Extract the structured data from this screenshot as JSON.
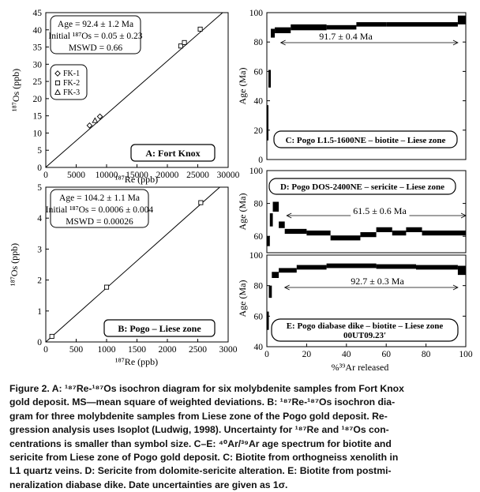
{
  "chart_data": [
    {
      "id": "A",
      "type": "scatter",
      "xlabel": "¹⁸⁷Re (ppb)",
      "ylabel": "¹⁸⁷Os (ppb)",
      "xlim": [
        0,
        30000
      ],
      "ylim": [
        0,
        45
      ],
      "xticks": [
        0,
        5000,
        10000,
        15000,
        20000,
        25000,
        30000
      ],
      "yticks": [
        0,
        5,
        10,
        15,
        20,
        25,
        30,
        35,
        40,
        45
      ],
      "legend": [
        {
          "symbol": "diamond",
          "name": "FK-1"
        },
        {
          "symbol": "square",
          "name": "FK-2"
        },
        {
          "symbol": "triangle",
          "name": "FK-3"
        }
      ],
      "stats_lines": [
        "Age = 92.4 ± 1.2 Ma",
        "Initial ¹⁸⁷Os = 0.05 ± 0.23",
        "MSWD = 0.66"
      ],
      "panel_label": "A:  Fort Knox",
      "regression": {
        "x": [
          0,
          30000
        ],
        "y": [
          0.05,
          46.4
        ]
      },
      "points": [
        {
          "x": 7200,
          "y": 12.2,
          "symbol": "diamond"
        },
        {
          "x": 8100,
          "y": 13.6,
          "symbol": "triangle"
        },
        {
          "x": 8900,
          "y": 14.8,
          "symbol": "diamond"
        },
        {
          "x": 22200,
          "y": 35.3,
          "symbol": "square"
        },
        {
          "x": 22800,
          "y": 36.3,
          "symbol": "square"
        },
        {
          "x": 25400,
          "y": 40.2,
          "symbol": "square"
        }
      ]
    },
    {
      "id": "B",
      "type": "scatter",
      "xlabel": "¹⁸⁷Re (ppb)",
      "ylabel": "¹⁸⁷Os (ppb)",
      "xlim": [
        0,
        3000
      ],
      "ylim": [
        0,
        5
      ],
      "xticks": [
        0,
        500,
        1000,
        1500,
        2000,
        2500,
        3000
      ],
      "yticks": [
        0,
        1,
        2,
        3,
        4,
        5
      ],
      "stats_lines": [
        "Age = 104.2 ± 1.1 Ma",
        "Initial ¹⁸⁷Os = 0.0006 ± 0.004",
        "MSWD = 0.00026"
      ],
      "panel_label": "B:  Pogo – Liese zone",
      "regression": {
        "x": [
          0,
          3000
        ],
        "y": [
          0.0006,
          5.24
        ]
      },
      "points": [
        {
          "x": 100,
          "y": 0.18,
          "symbol": "square"
        },
        {
          "x": 1000,
          "y": 1.77,
          "symbol": "square"
        },
        {
          "x": 2550,
          "y": 4.5,
          "symbol": "square"
        }
      ]
    },
    {
      "id": "C",
      "type": "line",
      "ylabel": "Age (Ma)",
      "xlim": [
        0,
        100
      ],
      "ylim": [
        0,
        100
      ],
      "yticks": [
        0,
        20,
        40,
        60,
        80,
        100
      ],
      "plateau_label": "91.7 ± 0.4 Ma",
      "plateau_range": [
        7,
        96
      ],
      "panel_label": "C: Pogo L1.5-1600NE – biotite – Liese zone",
      "steps": [
        {
          "x0": 0,
          "x1": 0.8,
          "y": 25,
          "err": 12
        },
        {
          "x0": 0.8,
          "x1": 2,
          "y": 55,
          "err": 6
        },
        {
          "x0": 2,
          "x1": 4,
          "y": 86,
          "err": 3
        },
        {
          "x0": 4,
          "x1": 12,
          "y": 88,
          "err": 2
        },
        {
          "x0": 12,
          "x1": 30,
          "y": 90,
          "err": 2
        },
        {
          "x0": 30,
          "x1": 45,
          "y": 90,
          "err": 1.5
        },
        {
          "x0": 45,
          "x1": 60,
          "y": 92,
          "err": 1.5
        },
        {
          "x0": 60,
          "x1": 96,
          "y": 92,
          "err": 1.5
        },
        {
          "x0": 96,
          "x1": 100,
          "y": 95,
          "err": 3
        }
      ]
    },
    {
      "id": "D",
      "type": "line",
      "ylabel": "Age (Ma)",
      "xlim": [
        0,
        100
      ],
      "ylim": [
        50,
        100
      ],
      "yticks": [
        60,
        80,
        100
      ],
      "plateau_label": "61.5 ± 0.6 Ma",
      "plateau_range": [
        10,
        100
      ],
      "panel_label": "D: Pogo DOS-2400NE – sericite – Liese zone",
      "steps": [
        {
          "x0": 0,
          "x1": 1.5,
          "y": 57,
          "err": 3
        },
        {
          "x0": 1.5,
          "x1": 3,
          "y": 70,
          "err": 4
        },
        {
          "x0": 3,
          "x1": 6,
          "y": 78,
          "err": 3
        },
        {
          "x0": 6,
          "x1": 9,
          "y": 67,
          "err": 2
        },
        {
          "x0": 9,
          "x1": 20,
          "y": 63,
          "err": 1.5
        },
        {
          "x0": 20,
          "x1": 32,
          "y": 62,
          "err": 1.5
        },
        {
          "x0": 32,
          "x1": 47,
          "y": 59,
          "err": 1.5
        },
        {
          "x0": 47,
          "x1": 55,
          "y": 61,
          "err": 1.5
        },
        {
          "x0": 55,
          "x1": 63,
          "y": 64,
          "err": 1.5
        },
        {
          "x0": 63,
          "x1": 70,
          "y": 62,
          "err": 1.5
        },
        {
          "x0": 70,
          "x1": 78,
          "y": 64,
          "err": 1.5
        },
        {
          "x0": 78,
          "x1": 100,
          "y": 62,
          "err": 1.5
        }
      ]
    },
    {
      "id": "E",
      "type": "line",
      "xlabel": "%³⁹Ar released",
      "ylabel": "Age (Ma)",
      "xlim": [
        0,
        100
      ],
      "ylim": [
        40,
        100
      ],
      "xticks": [
        0,
        20,
        40,
        60,
        80,
        100
      ],
      "yticks": [
        40,
        60,
        80,
        100
      ],
      "plateau_label": "92.7 ± 0.3 Ma",
      "plateau_range": [
        9,
        96
      ],
      "panel_label": "E: Pogo diabase dike – biotite – Liese zone",
      "panel_sublabel": "00UT09.23′",
      "steps": [
        {
          "x0": 0,
          "x1": 1,
          "y": 57,
          "err": 6
        },
        {
          "x0": 1,
          "x1": 2.5,
          "y": 76,
          "err": 4
        },
        {
          "x0": 2.5,
          "x1": 6,
          "y": 87,
          "err": 2
        },
        {
          "x0": 6,
          "x1": 15,
          "y": 90,
          "err": 1.5
        },
        {
          "x0": 15,
          "x1": 30,
          "y": 92,
          "err": 1.5
        },
        {
          "x0": 30,
          "x1": 55,
          "y": 93,
          "err": 1.5
        },
        {
          "x0": 55,
          "x1": 75,
          "y": 92.5,
          "err": 1.5
        },
        {
          "x0": 75,
          "x1": 96,
          "y": 92,
          "err": 1.5
        },
        {
          "x0": 96,
          "x1": 100,
          "y": 90,
          "err": 3
        }
      ]
    }
  ],
  "caption": [
    "Figure 2. A: ¹⁸⁷Re-¹⁸⁷Os isochron diagram for six molybdenite samples from Fort Knox",
    "gold deposit. MS—mean square of weighted deviations. B: ¹⁸⁷Re-¹⁸⁷Os isochron dia-",
    "gram for three molybdenite samples from Liese zone of the Pogo gold deposit. Re-",
    "gression analysis uses Isoplot (Ludwig, 1998). Uncertainty for ¹⁸⁷Re and ¹⁸⁷Os con-",
    "centrations is smaller than symbol size. C–E: ⁴⁰Ar/³⁹Ar age spectrum for biotite and",
    "sericite from Liese zone of Pogo gold deposit. C: Biotite from orthogneiss xenolith in",
    "L1 quartz veins. D: Sericite from dolomite-sericite alteration. E: Biotite from postmi-",
    "neralization diabase dike. Date uncertainties are given as 1σ."
  ]
}
